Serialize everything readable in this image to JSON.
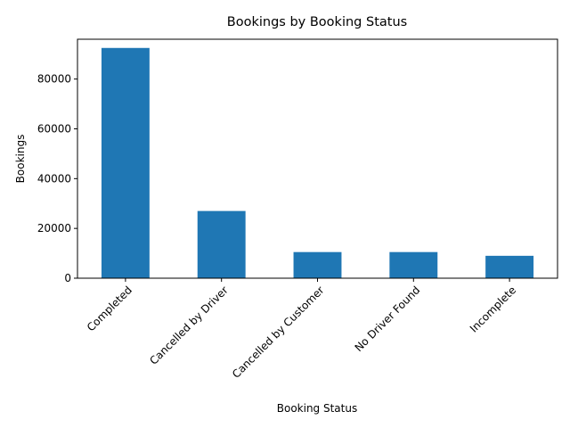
{
  "chart_data": {
    "type": "bar",
    "title": "Bookings by Booking Status",
    "xlabel": "Booking Status",
    "ylabel": "Bookings",
    "categories": [
      "Completed",
      "Cancelled by Driver",
      "Cancelled by Customer",
      "No Driver Found",
      "Incomplete"
    ],
    "values": [
      92500,
      27000,
      10500,
      10500,
      9000
    ],
    "ylim": [
      0,
      96000
    ],
    "yticks": [
      0,
      20000,
      40000,
      60000,
      80000
    ],
    "ytick_labels": [
      "0",
      "20000",
      "40000",
      "60000",
      "80000"
    ],
    "grid": false,
    "legend": false,
    "bar_color": "#1f77b4"
  }
}
